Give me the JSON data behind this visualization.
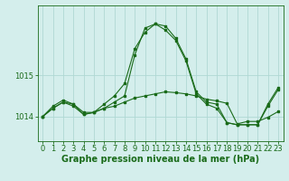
{
  "background_color": "#d4eeec",
  "grid_color": "#b0d8d4",
  "line_color": "#1a6b1a",
  "xlabel": "Graphe pression niveau de la mer (hPa)",
  "xlabel_fontsize": 7,
  "tick_fontsize": 6,
  "xlim": [
    -0.5,
    23.5
  ],
  "ylim": [
    1013.4,
    1016.7
  ],
  "yticks": [
    1014,
    1015
  ],
  "xticks": [
    0,
    1,
    2,
    3,
    4,
    5,
    6,
    7,
    8,
    9,
    10,
    11,
    12,
    13,
    14,
    15,
    16,
    17,
    18,
    19,
    20,
    21,
    22,
    23
  ],
  "s1_x": [
    0,
    1,
    2,
    3,
    4,
    5,
    6,
    7,
    8,
    9,
    10,
    11,
    12,
    13,
    14,
    15,
    16,
    17,
    18,
    19,
    20,
    21,
    22,
    23
  ],
  "s1_y": [
    1014.0,
    1014.2,
    1014.35,
    1014.25,
    1014.05,
    1014.1,
    1014.2,
    1014.35,
    1014.5,
    1015.5,
    1016.15,
    1016.25,
    1016.2,
    1015.9,
    1015.4,
    1014.6,
    1014.35,
    1014.3,
    1013.85,
    1013.8,
    1013.8,
    1013.8,
    1014.25,
    1014.65
  ],
  "s2_x": [
    0,
    1,
    2,
    3,
    4,
    5,
    6,
    7,
    8,
    9,
    10,
    11,
    12,
    13,
    14,
    15,
    16,
    17,
    18,
    19,
    20,
    21,
    22,
    23
  ],
  "s2_y": [
    1014.0,
    1014.25,
    1014.4,
    1014.3,
    1014.05,
    1014.1,
    1014.3,
    1014.5,
    1014.8,
    1015.65,
    1016.05,
    1016.25,
    1016.1,
    1015.85,
    1015.35,
    1014.55,
    1014.3,
    1014.2,
    1013.85,
    1013.8,
    1013.8,
    1013.8,
    1014.3,
    1014.7
  ],
  "s3_x": [
    0,
    1,
    2,
    3,
    4,
    5,
    6,
    7,
    8,
    9,
    10,
    11,
    12,
    13,
    14,
    15,
    16,
    17,
    18,
    19,
    20,
    21,
    22,
    23
  ],
  "s3_y": [
    1014.0,
    1014.2,
    1014.35,
    1014.3,
    1014.1,
    1014.1,
    1014.2,
    1014.25,
    1014.35,
    1014.45,
    1014.5,
    1014.55,
    1014.6,
    1014.58,
    1014.55,
    1014.5,
    1014.42,
    1014.38,
    1014.32,
    1013.82,
    1013.88,
    1013.88,
    1013.98,
    1014.12
  ]
}
